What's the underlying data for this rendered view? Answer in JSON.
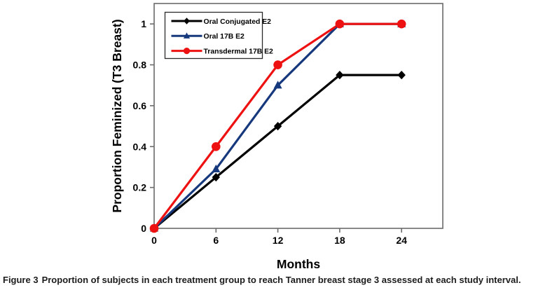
{
  "figure": {
    "caption_label": "Figure 3",
    "caption_text": "Proportion of subjects in each treatment group to reach Tanner breast stage 3 assessed at each study interval."
  },
  "chart_data": {
    "type": "line",
    "title": "",
    "xlabel": "Months",
    "ylabel": "Proportion Feminized (T3 Breast)",
    "x": [
      0,
      6,
      12,
      18,
      24
    ],
    "xticks": [
      0,
      6,
      12,
      18,
      24
    ],
    "yticks": [
      0,
      0.2,
      0.4,
      0.6,
      0.8,
      1
    ],
    "xlim": [
      0,
      28
    ],
    "ylim": [
      0,
      1.1
    ],
    "grid": false,
    "legend_position": "top-left-inside",
    "series": [
      {
        "name": "Oral Conjugated E2",
        "color": "#000000",
        "marker": "diamond",
        "values": [
          0,
          0.25,
          0.5,
          0.75,
          0.75
        ]
      },
      {
        "name": "Oral 17B E2",
        "color": "#16387C",
        "marker": "triangle",
        "values": [
          0,
          0.29,
          0.7,
          1,
          1
        ]
      },
      {
        "name": "Transdermal 17B E2",
        "color": "#EE1111",
        "marker": "circle",
        "values": [
          0,
          0.4,
          0.8,
          1,
          1
        ]
      }
    ],
    "style": {
      "axis_color": "#6b6b6b",
      "legend_border_color": "#2b2b2b",
      "tick_label_color": "#000000"
    }
  }
}
